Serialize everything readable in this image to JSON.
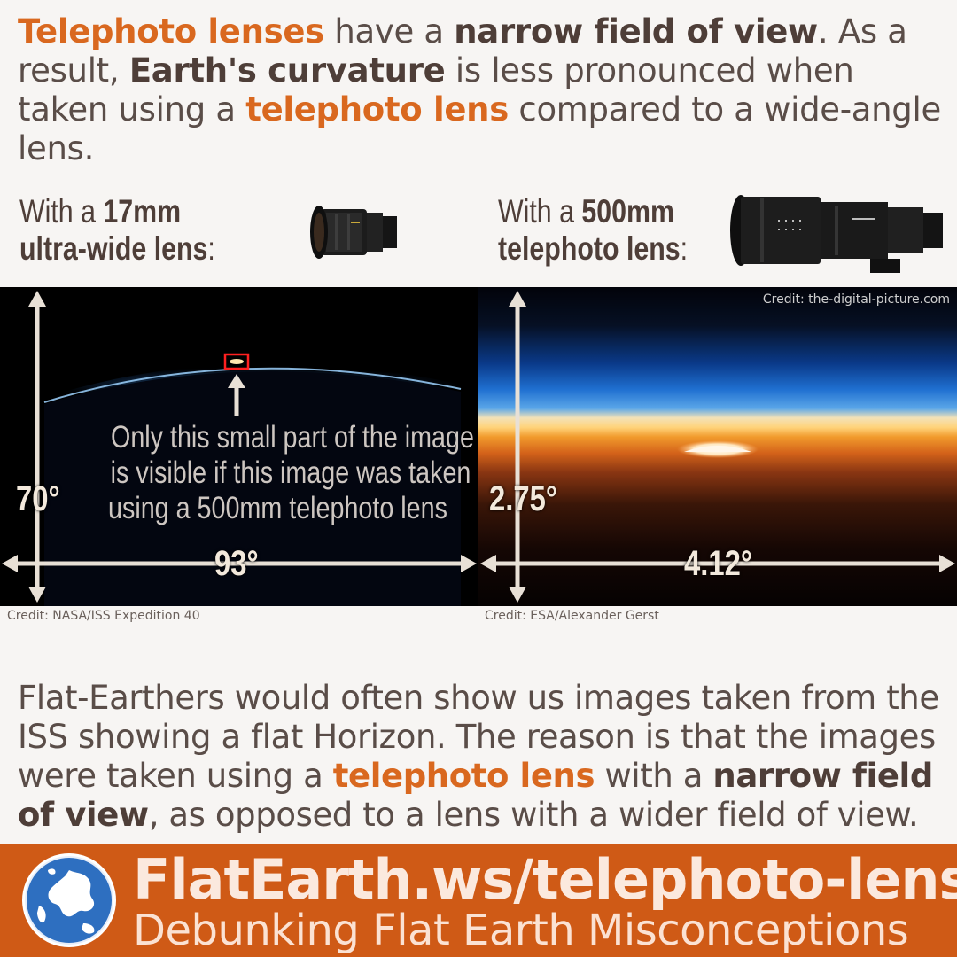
{
  "intro": {
    "p1": "Telephoto lenses",
    "p2": " have a ",
    "p3": "narrow field of view",
    "p4": ". As a result, ",
    "p5": "Earth's curvature",
    "p6": " is less pronounced when taken using a ",
    "p7": "telephoto lens",
    "p8": " compared to a wide-angle lens."
  },
  "left": {
    "label_pre": "With a ",
    "label_bold": "17mm",
    "label_line2": "ultra-wide lens",
    "label_colon": ":",
    "fov_vertical": "70°",
    "fov_horizontal": "93°",
    "note_line1": "Only this small part of the image",
    "note_line2": "is visible if this image was taken",
    "note_line3": "using a 500mm telephoto lens",
    "credit": "Credit: NASA/ISS Expedition 40"
  },
  "right": {
    "label_pre": "With a ",
    "label_bold": "500mm",
    "label_line2": "telephoto lens",
    "label_colon": ":",
    "fov_vertical": "2.75°",
    "fov_horizontal": "4.12°",
    "credit": "Credit: ESA/Alexander Gerst",
    "lens_credit": "Credit: the-digital-picture.com"
  },
  "explain": {
    "p1": "Flat-Earthers would often show us images taken from the ISS showing a flat Horizon. The reason is that the images were taken using a ",
    "p2": "telephoto lens",
    "p3": " with a ",
    "p4": "narrow field of view",
    "p5": ", as opposed to a lens with a wider field of view."
  },
  "footer": {
    "title": "FlatEarth.ws/telephoto-lens",
    "subtitle": "Debunking Flat Earth Misconceptions"
  }
}
